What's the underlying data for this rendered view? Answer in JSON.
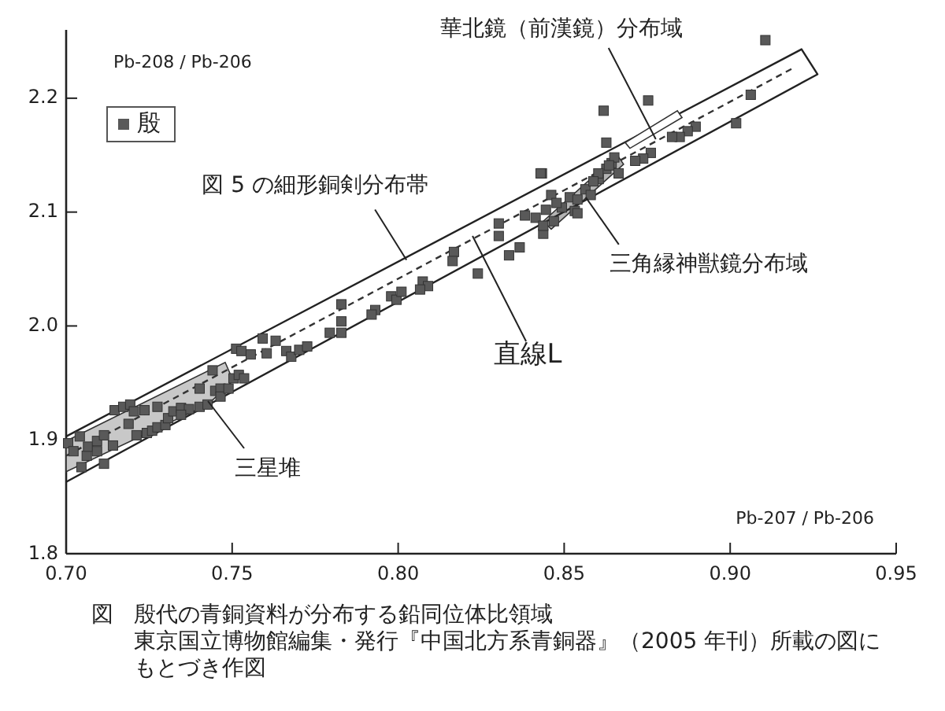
{
  "chart_data": {
    "type": "scatter",
    "xlabel": "Pb-207 / Pb-206",
    "ylabel": "Pb-208 / Pb-206",
    "xlim": [
      0.7,
      0.95
    ],
    "xticks": [
      {
        "value": 0.7,
        "label": "0.70"
      },
      0.75,
      {
        "value": 0.8,
        "label": "0.80"
      },
      0.85,
      {
        "value": 0.9,
        "label": "0.90"
      },
      0.95
    ],
    "ylim": [
      1.8,
      2.26
    ],
    "yticks": [
      1.8,
      1.9,
      {
        "value": 2.0,
        "label": "2.0"
      },
      2.1,
      2.2
    ],
    "grid": false,
    "legend": "top left",
    "series": [
      {
        "type": "area",
        "color": "#c8c8c8",
        "x": [
          0.7,
          0.7479,
          0.7503,
          0.7427,
          0.7
        ],
        "values": [
          1.899,
          1.968,
          1.952,
          1.931,
          1.872
        ]
      },
      {
        "type": "area",
        "color": "#b4b4b4",
        "x": [
          0.8437,
          0.866,
          0.8679,
          0.8461
        ],
        "values": [
          2.092,
          2.15,
          2.142,
          2.085
        ]
      },
      {
        "type": "line",
        "color": "#222222",
        "line_style": "solid",
        "x": [
          0.7,
          0.9215,
          0.9263,
          0.7
        ],
        "values": [
          1.903,
          2.243,
          2.221,
          1.863
        ]
      },
      {
        "type": "line",
        "color": "#333333",
        "line_style": "dashed",
        "x": [
          0.7,
          0.9187
        ],
        "values": [
          1.886,
          2.226
        ]
      },
      {
        "type": "area",
        "color": "#ffffff",
        "x": [
          0.8684,
          0.8841,
          0.8855,
          0.8698
        ],
        "values": [
          2.161,
          2.189,
          2.183,
          2.156
        ]
      },
      {
        "name": "殷",
        "color": "#595959",
        "marker": "square",
        "x": [
          0.7006,
          0.7022,
          0.7041,
          0.7046,
          0.7062,
          0.7066,
          0.7093,
          0.7093,
          0.7114,
          0.7114,
          0.7141,
          0.7146,
          0.7172,
          0.7193,
          0.7188,
          0.7204,
          0.7236,
          0.7212,
          0.7243,
          0.7259,
          0.7275,
          0.7275,
          0.7299,
          0.7307,
          0.7323,
          0.7346,
          0.737,
          0.7346,
          0.7402,
          0.7402,
          0.7426,
          0.7441,
          0.7449,
          0.7465,
          0.7465,
          0.7489,
          0.7504,
          0.752,
          0.7536,
          0.7512,
          0.7528,
          0.7556,
          0.7592,
          0.7604,
          0.7631,
          0.7663,
          0.7678,
          0.7702,
          0.7726,
          0.7794,
          0.7829,
          0.7829,
          0.7829,
          0.7931,
          0.792,
          0.7979,
          0.7995,
          0.801,
          0.8074,
          0.809,
          0.8066,
          0.8168,
          0.8164,
          0.824,
          0.8303,
          0.8303,
          0.8334,
          0.8366,
          0.8437,
          0.8414,
          0.8445,
          0.8469,
          0.8493,
          0.8517,
          0.854,
          0.8564,
          0.858,
          0.8604,
          0.8627,
          0.8643,
          0.8532,
          0.8433,
          0.8664,
          0.9106,
          0.9062,
          0.9018,
          0.8896,
          0.8872,
          0.8848,
          0.8825,
          0.8753,
          0.8619,
          0.8627,
          0.8761,
          0.8738,
          0.8714,
          0.8651,
          0.8635,
          0.8603,
          0.8429,
          0.8588,
          0.8461,
          0.854,
          0.8477,
          0.8382,
          0.8437
        ],
        "values": [
          1.897,
          1.89,
          1.903,
          1.876,
          1.886,
          1.894,
          1.899,
          1.89,
          1.879,
          1.904,
          1.895,
          1.926,
          1.929,
          1.931,
          1.914,
          1.925,
          1.926,
          1.904,
          1.906,
          1.908,
          1.929,
          1.911,
          1.913,
          1.919,
          1.925,
          1.928,
          1.927,
          1.922,
          1.929,
          1.945,
          1.931,
          1.961,
          1.943,
          1.945,
          1.938,
          1.945,
          1.954,
          1.957,
          1.954,
          1.98,
          1.978,
          1.975,
          1.989,
          1.976,
          1.987,
          1.978,
          1.973,
          1.979,
          1.982,
          1.994,
          1.994,
          2.004,
          2.019,
          2.014,
          2.01,
          2.026,
          2.023,
          2.03,
          2.039,
          2.035,
          2.032,
          2.065,
          2.057,
          2.046,
          2.09,
          2.079,
          2.062,
          2.069,
          2.081,
          2.095,
          2.102,
          2.092,
          2.104,
          2.113,
          2.111,
          2.12,
          2.115,
          2.129,
          2.138,
          2.143,
          2.101,
          2.134,
          2.134,
          2.251,
          2.203,
          2.178,
          2.175,
          2.171,
          2.166,
          2.166,
          2.198,
          2.189,
          2.161,
          2.152,
          2.147,
          2.145,
          2.148,
          2.141,
          2.134,
          2.134,
          2.127,
          2.115,
          2.099,
          2.108,
          2.097,
          2.088
        ]
      }
    ],
    "annotations": [
      {
        "text": "図 5 の細形銅剣分布帯",
        "x": 0.8025,
        "y": 2.058
      },
      {
        "text": "直線L",
        "x": 0.8224,
        "y": 2.079
      },
      {
        "text": "三角縁神獣鏡分布域",
        "x": 0.8565,
        "y": 2.113
      },
      {
        "text": "華北鏡（前漢鏡）分布域",
        "x": 0.8776,
        "y": 2.164
      },
      {
        "text": "三星堆",
        "x": 0.7427,
        "y": 1.934
      },
      "図",
      "殷代の青銅資料が分布する鉛同位体比領域",
      "東京国立博物館編集・発行『中国北方系青銅器』（2005 年刊）所載の図にもとづき作図"
    ]
  }
}
